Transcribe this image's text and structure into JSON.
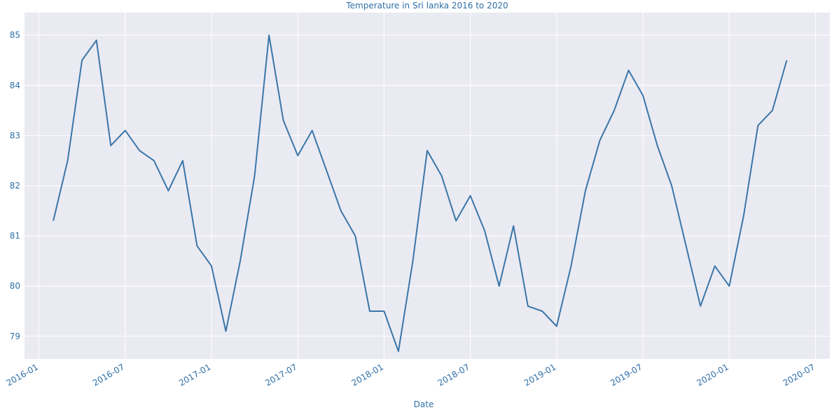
{
  "chart_data": {
    "type": "line",
    "title": "Temperature in Sri lanka 2016 to 2020",
    "x_label": "Date",
    "x": [
      "2016-02",
      "2016-03",
      "2016-04",
      "2016-05",
      "2016-06",
      "2016-07",
      "2016-08",
      "2016-09",
      "2016-10",
      "2016-11",
      "2016-12",
      "2017-01",
      "2017-02",
      "2017-03",
      "2017-04",
      "2017-05",
      "2017-06",
      "2017-07",
      "2017-08",
      "2017-09",
      "2017-10",
      "2017-11",
      "2017-12",
      "2018-01",
      "2018-02",
      "2018-03",
      "2018-04",
      "2018-05",
      "2018-06",
      "2018-07",
      "2018-08",
      "2018-09",
      "2018-10",
      "2018-11",
      "2018-12",
      "2019-01",
      "2019-02",
      "2019-03",
      "2019-04",
      "2019-05",
      "2019-06",
      "2019-07",
      "2019-08",
      "2019-09",
      "2019-10",
      "2019-11",
      "2019-12",
      "2020-01",
      "2020-02",
      "2020-03",
      "2020-04",
      "2020-05"
    ],
    "series": [
      {
        "name": "Temperature",
        "color": "#3a76a8",
        "values": [
          81.3,
          82.5,
          84.5,
          84.9,
          82.8,
          83.1,
          82.7,
          82.5,
          81.9,
          82.5,
          80.8,
          80.4,
          79.1,
          80.5,
          82.2,
          85.0,
          83.3,
          82.6,
          83.1,
          82.3,
          81.5,
          81.0,
          79.5,
          79.5,
          78.7,
          80.5,
          82.7,
          82.2,
          81.3,
          81.8,
          81.1,
          80.0,
          81.2,
          79.6,
          79.5,
          79.2,
          80.4,
          81.9,
          82.9,
          83.5,
          84.3,
          83.8,
          82.8,
          82.0,
          80.8,
          79.6,
          80.4,
          80.0,
          81.4,
          83.2,
          83.5,
          84.5
        ]
      }
    ],
    "xlim": [
      "2015-12",
      "2020-08"
    ],
    "xticks": [
      "2016-01",
      "2016-07",
      "2017-01",
      "2017-07",
      "2018-01",
      "2018-07",
      "2019-01",
      "2019-07",
      "2020-01",
      "2020-07"
    ],
    "ylim": [
      78.55,
      85.45
    ],
    "yticks": [
      79,
      80,
      81,
      82,
      83,
      84,
      85
    ],
    "grid": true
  }
}
